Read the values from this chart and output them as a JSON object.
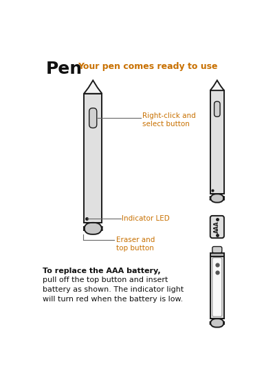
{
  "title_bold": "Pen",
  "title_regular": "    Your pen comes ready to use",
  "label1": "Right-click and\nselect button",
  "label2": "Indicator LED",
  "label3": "Eraser and\ntop button",
  "battery_text_bold": "To replace the AAA battery,",
  "battery_text_reg": "pull off the top button and insert\nbattery as shown. The indicator light\nwill turn red when the battery is low.",
  "bg_color": "#ffffff",
  "pen_fill": "#e0e0e0",
  "pen_stroke": "#1a1a1a",
  "tip_fill": "#f5f5f5",
  "eraser_fill": "#c8c8c8",
  "btn_fill": "#d0d0d0",
  "label_color": "#c87000",
  "text_color": "#111111",
  "line_color": "#666666"
}
